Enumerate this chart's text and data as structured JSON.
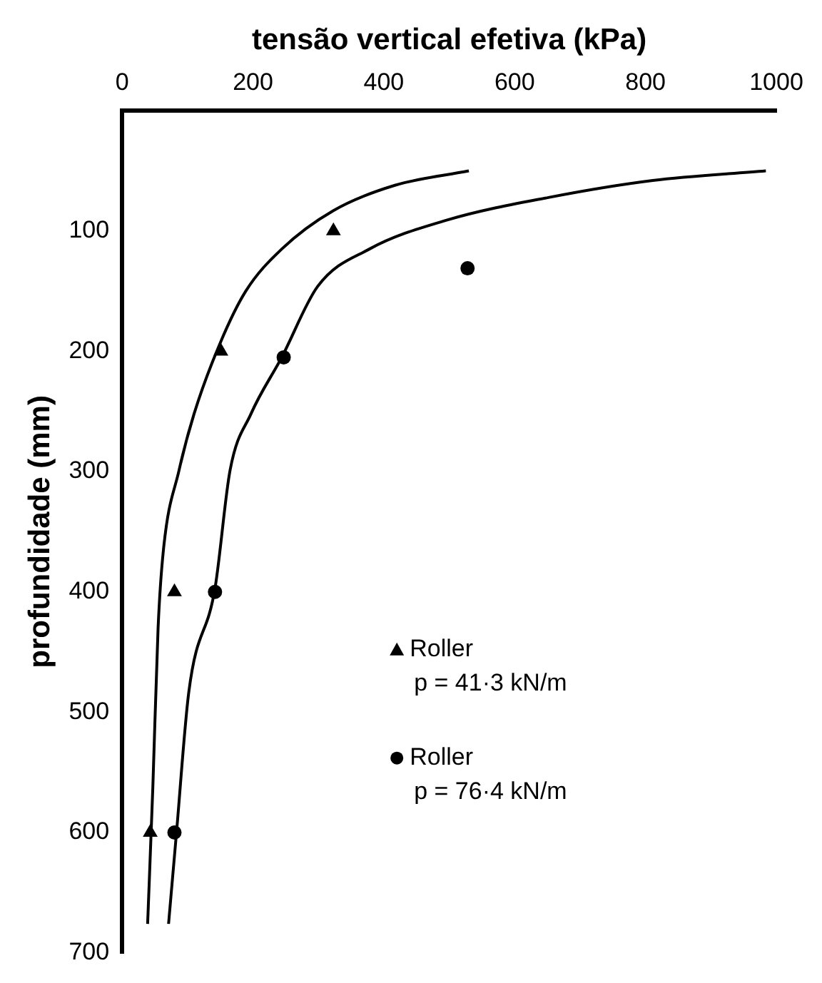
{
  "chart_data": {
    "type": "scatter",
    "xlabel": "tensão vertical efetiva (kPa)",
    "ylabel": "profundidade (mm)",
    "xlim": [
      0,
      1000
    ],
    "xticks": [
      0,
      200,
      400,
      600,
      800,
      1000
    ],
    "ylim": [
      700,
      0
    ],
    "yticks": [
      100,
      200,
      300,
      400,
      500,
      600,
      700
    ],
    "grid": false,
    "legend": "bottom right",
    "annotations": [
      "p = 41·3 kN/m",
      "p = 76·4 kN/m"
    ],
    "series": [
      {
        "name": "Roller",
        "type": "scatter",
        "marker": "triangle",
        "color": "#000000",
        "x": [
          323,
          151,
          80,
          43
        ],
        "values": [
          100,
          200,
          400,
          600
        ]
      },
      {
        "name": "Roller",
        "type": "scatter",
        "marker": "circle",
        "color": "#000000",
        "x": [
          528,
          247,
          142,
          80
        ],
        "values": [
          131,
          205,
          400,
          600
        ]
      },
      {
        "type": "line",
        "marker": "none",
        "color": "#000000",
        "x": [
          530,
          417,
          323,
          244,
          189,
          150,
          110,
          87,
          63,
          55,
          47,
          39
        ],
        "values": [
          50,
          62,
          83,
          115,
          150,
          193,
          252,
          299,
          366,
          430,
          562,
          676
        ]
      },
      {
        "type": "line",
        "marker": "none",
        "color": "#000000",
        "x": [
          984,
          811,
          653,
          496,
          378,
          299,
          244,
          197,
          165,
          142,
          102,
          83,
          71
        ],
        "values": [
          50,
          58,
          72,
          91,
          115,
          146,
          205,
          252,
          299,
          397,
          483,
          601,
          676
        ]
      }
    ]
  }
}
